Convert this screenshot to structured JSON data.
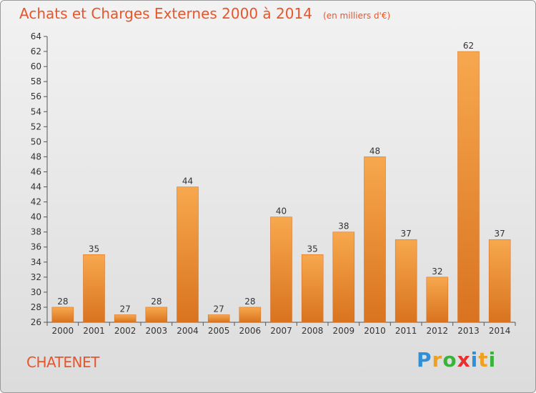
{
  "header": {
    "title": "Achats et Charges Externes 2000 à 2014",
    "unit": "(en milliers d'€)"
  },
  "commune": "CHATENET",
  "logo": {
    "text": "Proxiti",
    "letters": [
      {
        "ch": "P",
        "color": "#2f8fd8"
      },
      {
        "ch": "r",
        "color": "#f0a020"
      },
      {
        "ch": "o",
        "color": "#3bb33b"
      },
      {
        "ch": "x",
        "color": "#e83030"
      },
      {
        "ch": "i",
        "color": "#2f8fd8"
      },
      {
        "ch": "t",
        "color": "#f0a020"
      },
      {
        "ch": "i",
        "color": "#3bb33b"
      }
    ]
  },
  "colors": {
    "bar_light": "#f7a84e",
    "bar_dark": "#d9731f",
    "accent": "#e8552a"
  },
  "chart_data": {
    "type": "bar",
    "title": "Achats et Charges Externes 2000 à 2014",
    "subtitle": "(en milliers d'€)",
    "xlabel": "",
    "ylabel": "",
    "categories": [
      "2000",
      "2001",
      "2002",
      "2003",
      "2004",
      "2005",
      "2006",
      "2007",
      "2008",
      "2009",
      "2010",
      "2011",
      "2012",
      "2013",
      "2014"
    ],
    "values": [
      28,
      35,
      27,
      28,
      44,
      27,
      28,
      40,
      35,
      38,
      48,
      37,
      32,
      62,
      37
    ],
    "ylim": [
      26,
      64
    ],
    "ytick_step": 2,
    "grid": false,
    "legend": "none"
  }
}
